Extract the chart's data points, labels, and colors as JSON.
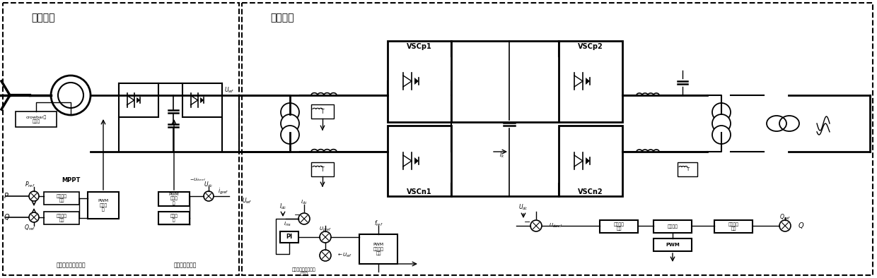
{
  "bg": "#ffffff",
  "section1_label": "风机部分",
  "section2_label": "柔直部分",
  "label_crowbar": "crowbar保\n护电路",
  "label_active": "有功功率\n控制",
  "label_reactive": "无功功率\n控制",
  "label_pwm_cur1": "PWM\n电流控\n制",
  "label_pwm_cur2": "PWM\n电流控\n制",
  "label_decouple": "有无功功率解耦控制",
  "label_dcv": "定直流电压控制",
  "label_VSCp1": "VSCp1",
  "label_VSCn1": "VSCn1",
  "label_VSCp2": "VSCp2",
  "label_VSCn2": "VSCn2",
  "label_PI": "PI",
  "label_pwm_ac": "PWM\n交流电压\n控制",
  "label_fault": "故障穿越时的电压反\n馈控制",
  "label_dc_ctrl": "直流电压\n控制",
  "label_cur_ctrl": "电流控制",
  "label_react_ctrl": "无功功率\n控制",
  "label_MPPT": "MPPT"
}
